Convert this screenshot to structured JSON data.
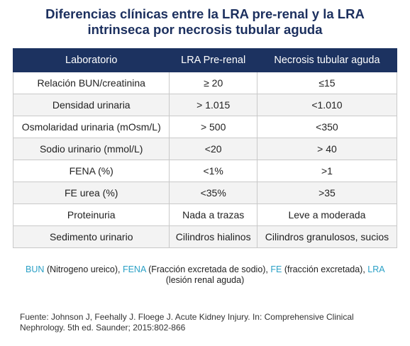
{
  "header": {
    "title_lines": [
      "Diferencias clínicas entre la LRA pre-renal y la LRA",
      "intrinseca por necrosis tubular aguda"
    ]
  },
  "table": {
    "columns": [
      "Laboratorio",
      "LRA Pre-renal",
      "Necrosis tubular aguda"
    ],
    "rows": [
      [
        "Relación BUN/creatinina",
        "≥ 20",
        "≤15"
      ],
      [
        "Densidad urinaria",
        "> 1.015",
        "<1.010"
      ],
      [
        "Osmolaridad urinaria (mOsm/L)",
        "> 500",
        "<350"
      ],
      [
        "Sodio urinario (mmol/L)",
        "<20",
        "> 40"
      ],
      [
        "FENA (%)",
        "<1%",
        ">1"
      ],
      [
        "FE urea (%)",
        "<35%",
        ">35"
      ],
      [
        "Proteinuria",
        "Nada a trazas",
        "Leve a moderada"
      ],
      [
        "Sedimento urinario",
        "Cilindros hialinos",
        "Cilindros granulosos, sucios"
      ]
    ]
  },
  "abbreviations": [
    {
      "abbr": "BUN",
      "definition": "(Nitrogeno ureico),"
    },
    {
      "abbr": "FENA",
      "definition": "(Fracción excretada de sodio),"
    },
    {
      "abbr": "FE",
      "definition": "(fracción excretada),"
    },
    {
      "abbr": "LRA",
      "definition": "(lesión renal aguda)"
    }
  ],
  "source": "Fuente: Johnson J, Feehally J. Floege J. Acute Kidney Injury. In: Comprehensive Clinical Nephrology. 5th ed. Saunder; 2015:802-866"
}
